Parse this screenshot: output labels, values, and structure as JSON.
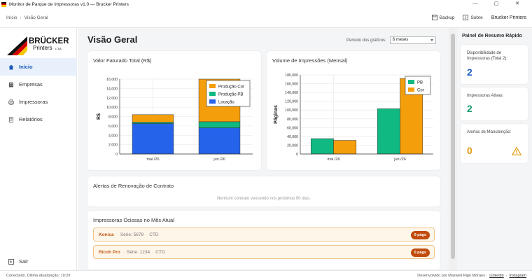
{
  "window": {
    "title": "Monitor de Parque de Impressoras v1.0 — Brucker Printers",
    "minimize": "—",
    "maximize": "▢",
    "close": "✕"
  },
  "header": {
    "breadcrumb": [
      "Início",
      "Visão Geral"
    ],
    "backup_label": "Backup",
    "about_label": "Sobre",
    "brand": "Brucker Printers"
  },
  "sidebar": {
    "logo_text": "BRÜCKER",
    "logo_sub": "Printers",
    "logo_small": "LTDA",
    "items": [
      {
        "label": "Início",
        "icon": "home-icon"
      },
      {
        "label": "Empresas",
        "icon": "building-icon"
      },
      {
        "label": "Impressoras",
        "icon": "printer-icon"
      },
      {
        "label": "Relatórios",
        "icon": "document-icon"
      }
    ],
    "logout_label": "Sair"
  },
  "main": {
    "title": "Visão Geral",
    "period_label": "Período dos gráficos:",
    "period_value": "6 meses",
    "contract_alerts": {
      "title": "Alertas de Renovação de Contrato",
      "empty": "Nenhum contrato vencendo nos próximos 90 dias."
    },
    "idle": {
      "title": "Impressoras Ociosas no Mês Atual",
      "rows": [
        {
          "name": "Konica",
          "serial": "Série: 5678",
          "tag": "CTD",
          "badge": "0 págs"
        },
        {
          "name": "Ricoh Pro",
          "serial": "Série: 1234",
          "tag": "CTD",
          "badge": "0 págs"
        }
      ]
    }
  },
  "right_panel": {
    "title": "Painel de Resumo Rápido",
    "cards": [
      {
        "label": "Disponibilidade de Impressoras (Total 2):",
        "value": "2",
        "color": "#1f5fbf"
      },
      {
        "label": "Impressoras Ativas:",
        "value": "2",
        "color": "#1a9e6e"
      },
      {
        "label": "Alertas de Manutenção:",
        "value": "0",
        "color": "#e39b12"
      }
    ]
  },
  "status": {
    "left": "Conectado. Última atualização: 10:29",
    "credit": "Desenvolvido por Maxwell Rigo Moraes ·",
    "link1": "Linkedin",
    "mid": "·",
    "link2": "Instagram"
  },
  "chart_data": [
    {
      "type": "bar",
      "stacked": true,
      "title": "Valor Faturado Total (R$)",
      "xlabel": "",
      "ylabel": "R$",
      "categories": [
        "mai./26",
        "jun./26"
      ],
      "ylim": [
        0,
        16000
      ],
      "yticks": [
        0,
        2000,
        4000,
        6000,
        8000,
        10000,
        12000,
        14000,
        16000
      ],
      "ytick_labels": [
        "0",
        "2,000",
        "4,000",
        "6,000",
        "8,000",
        "10,000",
        "12,000",
        "14,000",
        "16,000"
      ],
      "series": [
        {
          "name": "Locação",
          "color": "#2563eb",
          "values": [
            6500,
            5600
          ]
        },
        {
          "name": "Produção PB",
          "color": "#10b981",
          "values": [
            300,
            1300
          ]
        },
        {
          "name": "Produção Cor",
          "color": "#f59e0b",
          "values": [
            1600,
            9100
          ]
        }
      ],
      "legend_order": [
        "Produção Cor",
        "Produção PB",
        "Locação"
      ],
      "legend": "top-right",
      "grid": true
    },
    {
      "type": "bar",
      "stacked": false,
      "title": "Volume de Impressões (Mensal)",
      "xlabel": "",
      "ylabel": "Páginas",
      "categories": [
        "mai./26",
        "jun./26"
      ],
      "ylim": [
        0,
        180000
      ],
      "yticks": [
        0,
        20000,
        40000,
        60000,
        80000,
        100000,
        120000,
        140000,
        160000,
        180000
      ],
      "ytick_labels": [
        "0",
        "20,000",
        "40,000",
        "60,000",
        "80,000",
        "100,000",
        "120,000",
        "140,000",
        "160,000",
        "180,000"
      ],
      "series": [
        {
          "name": "PB",
          "color": "#10b981",
          "values": [
            35000,
            103000
          ]
        },
        {
          "name": "Cor",
          "color": "#f59e0b",
          "values": [
            31000,
            172000
          ]
        }
      ],
      "legend_order": [
        "PB",
        "Cor"
      ],
      "legend": "top-right",
      "grid": true
    }
  ]
}
